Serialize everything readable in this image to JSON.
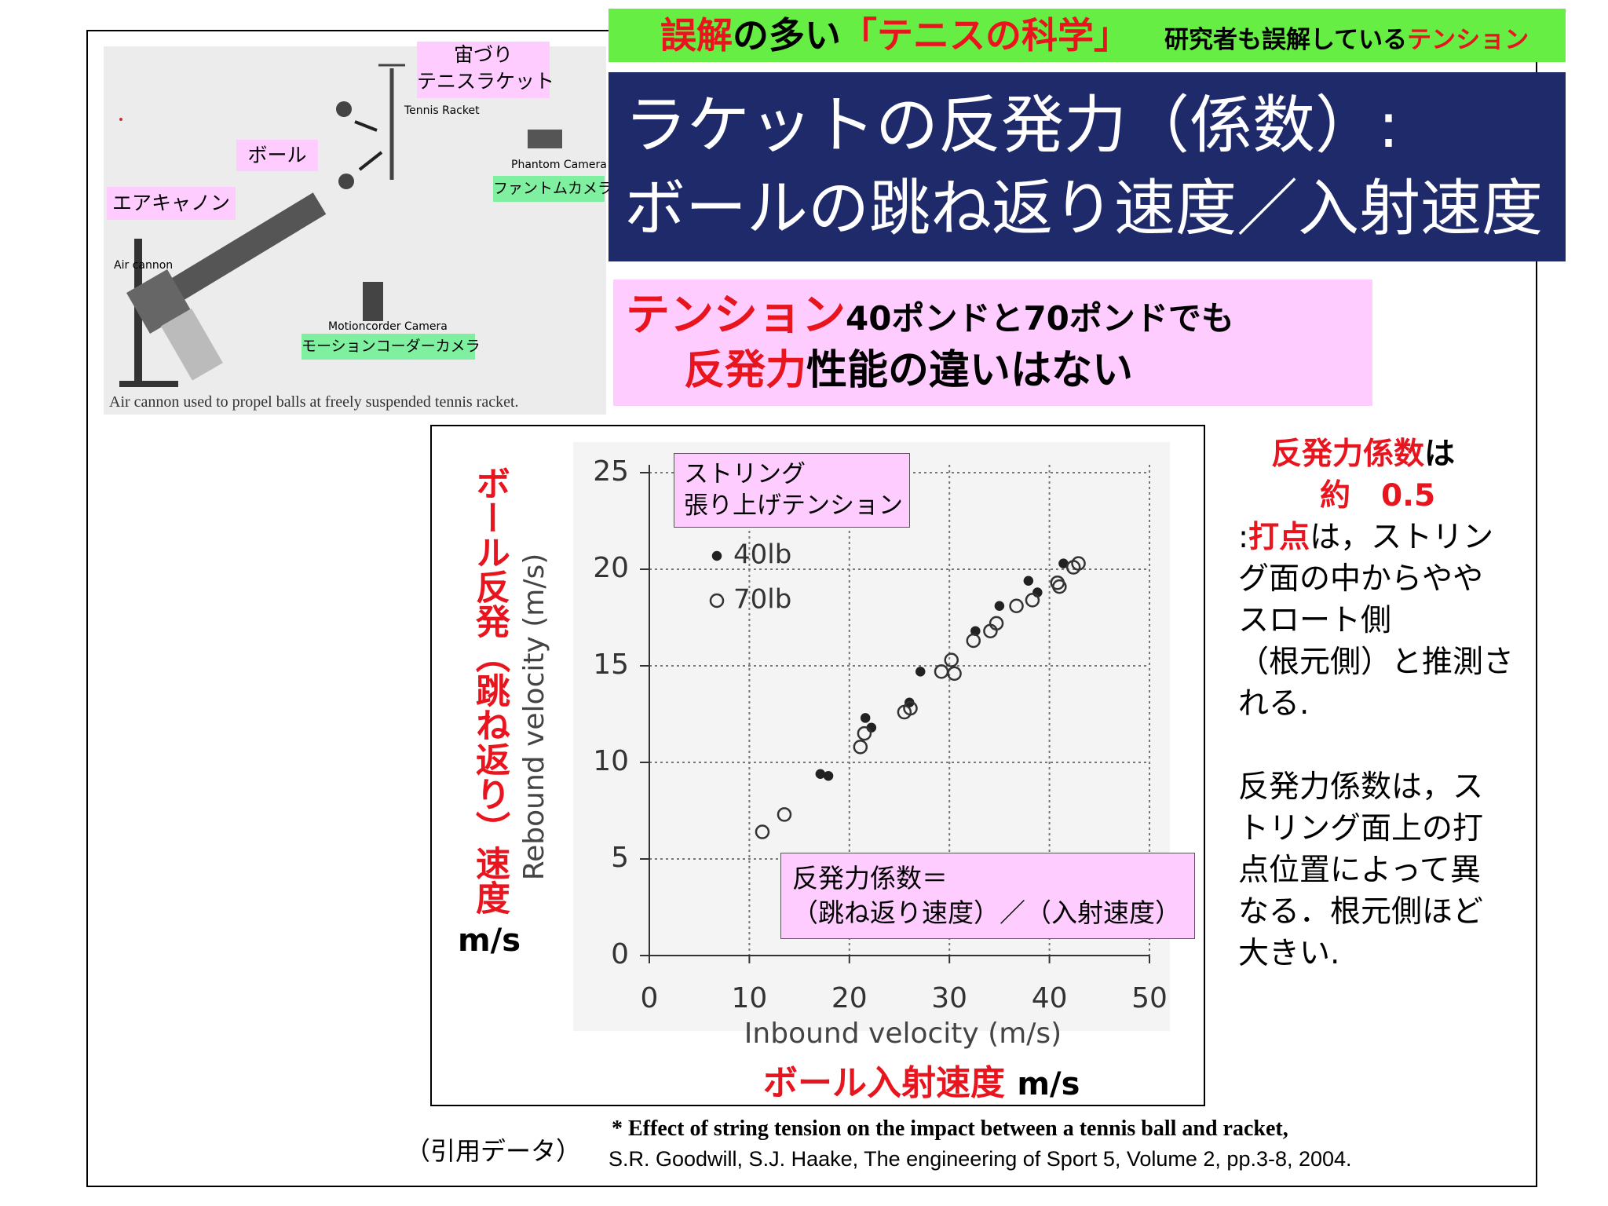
{
  "header": {
    "title": [
      "誤解",
      "の多い",
      "「テニスの科学」"
    ],
    "subtitle": [
      "研究者も誤解している",
      "テンション"
    ]
  },
  "title": [
    "ラケットの反発力（係数）:",
    "ボールの跳ね返り速度／入射速度"
  ],
  "summary": {
    "line1": [
      "テンション",
      "40ポンドと70ポンドでも"
    ],
    "line2": [
      "反発力",
      "性能の違いはない"
    ]
  },
  "diagram": {
    "racket_label": [
      "宙づり",
      "テニスラケット"
    ],
    "racket_en": "Tennis Racket",
    "ball_label": "ボール",
    "cannon_label": "エアキャノン",
    "cannon_en": "Air cannon",
    "phantom_en": "Phantom Camera",
    "phantom_label": "ファントムカメラ",
    "motion_en": "Motioncorder Camera",
    "motion_label": "モーションコーダーカメラ",
    "caption": "Air cannon used to propel balls at freely suspended tennis racket."
  },
  "chart_data": {
    "type": "scatter",
    "xlabel": "Inbound velocity (m/s)",
    "ylabel": "Rebound velocity (m/s)",
    "xlabel_jp": [
      "ボール入射速度",
      "m/s"
    ],
    "ylabel_jp": [
      "ボール反発（跳ね返り）速度",
      "m/s"
    ],
    "legend_title": [
      "ストリング",
      "張り上げテンション"
    ],
    "annotation": [
      "反発力係数＝",
      "（跳ね返り速度）／（入射速度）"
    ],
    "xlim": [
      0,
      50
    ],
    "ylim": [
      0,
      25
    ],
    "xticks": [
      0,
      10,
      20,
      30,
      40,
      50
    ],
    "yticks": [
      0,
      5,
      10,
      15,
      20,
      25
    ],
    "grid": true,
    "series": [
      {
        "name": "40lb",
        "color": "#222222",
        "marker": "filled",
        "x": [
          17.1,
          17.9,
          21.6,
          22.2,
          26.0,
          27.1,
          32.6,
          35.0,
          37.9,
          38.8,
          41.4
        ],
        "values": [
          9.4,
          9.3,
          12.3,
          11.8,
          13.1,
          14.7,
          16.8,
          18.1,
          19.4,
          18.8,
          20.3
        ]
      },
      {
        "name": "70lb",
        "color": "#333333",
        "marker": "open",
        "x": [
          11.3,
          13.5,
          21.1,
          21.5,
          25.5,
          26.1,
          29.2,
          30.2,
          30.5,
          32.4,
          34.1,
          34.7,
          36.7,
          38.3,
          40.8,
          41.0,
          42.4,
          42.9
        ],
        "values": [
          6.4,
          7.3,
          10.8,
          11.5,
          12.6,
          12.8,
          14.7,
          15.3,
          14.6,
          16.3,
          16.8,
          17.2,
          18.1,
          18.4,
          19.3,
          19.1,
          20.1,
          20.3
        ]
      }
    ]
  },
  "notes": {
    "p1": [
      "反発力係数",
      "は"
    ],
    "p1b": "約　0.5",
    "p2_first": [
      ":",
      "打点",
      "は，ストリン"
    ],
    "p2": [
      "グ面の中からやや",
      "スロート側",
      "（根元側）と推測さ",
      "れる."
    ],
    "p3": [
      "反発力係数は，ス",
      "トリング面上の打",
      "点位置によって異",
      "なる．根元側ほど",
      "大きい."
    ]
  },
  "citation": {
    "label": "（引用データ）",
    "line1": "*  Effect of string tension on the impact between a tennis ball and racket,",
    "line2": "S.R. Goodwill, S.J. Haake, The engineering of Sport 5, Volume 2, pp.3-8, 2004."
  }
}
